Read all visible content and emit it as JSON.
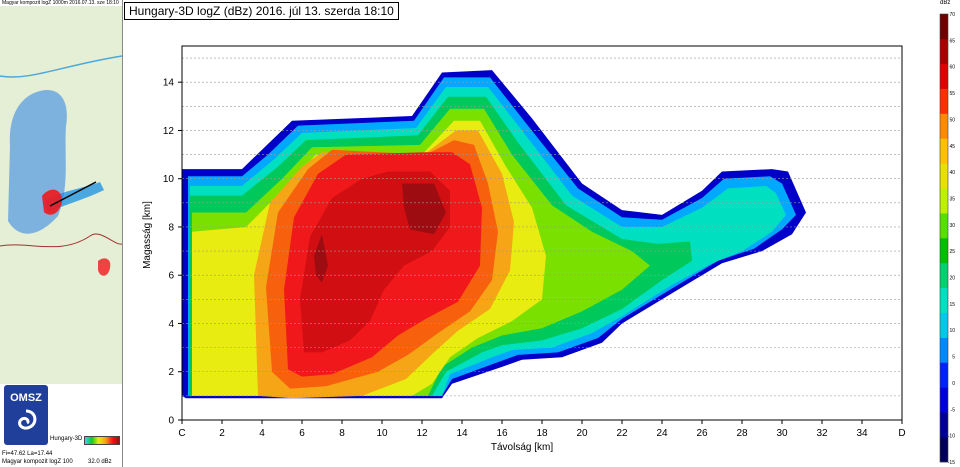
{
  "chart_title": "Hungary-3D logZ (dBz) 2016. júl 13. szerda 18:10",
  "minimap": {
    "title": "Magyar kompozit logZ 1000m 2016.07.13. sze 18:10",
    "logo_text": "OMSZ",
    "legend_caption": "Hungary-3D",
    "coords": "Fi=47.62 La=17.44",
    "composite_label": "Magyar kompozit logZ 100",
    "composite_value": "32.0 dBz"
  },
  "colors": {
    "map_bg": "#e4efd6",
    "lake": "#4aa7e0",
    "logo_bg": "#1f3f9a"
  },
  "colorbar": {
    "unit": "dBz",
    "ticks": [
      -15,
      -10,
      -5,
      0,
      5,
      10,
      15,
      20,
      25,
      30,
      35,
      40,
      45,
      50,
      55,
      60,
      65,
      70
    ],
    "colors": [
      "#00005a",
      "#000099",
      "#0000dd",
      "#0022ff",
      "#0088ff",
      "#00c8e8",
      "#00e0c0",
      "#00d070",
      "#00c000",
      "#55e000",
      "#bff000",
      "#e8e000",
      "#ffc000",
      "#ff8a00",
      "#ff3000",
      "#e00000",
      "#aa0000",
      "#700000"
    ]
  },
  "chart_data": {
    "type": "heatmap",
    "title": "Hungary-3D logZ (dBz) 2016. júl 13. szerda 18:10",
    "xlabel": "Távolság [km]",
    "ylabel": "Magasság [km]",
    "xlim": [
      0,
      36
    ],
    "ylim": [
      0,
      15.5
    ],
    "x_ticks": [
      0,
      2,
      4,
      6,
      8,
      10,
      12,
      14,
      16,
      18,
      20,
      22,
      24,
      26,
      28,
      30,
      32,
      34,
      36
    ],
    "x_tick_labels": [
      "C",
      "2",
      "4",
      "6",
      "8",
      "10",
      "12",
      "14",
      "16",
      "18",
      "20",
      "22",
      "24",
      "26",
      "28",
      "30",
      "32",
      "34",
      "D"
    ],
    "y_ticks": [
      0,
      2,
      4,
      6,
      8,
      10,
      12,
      14
    ],
    "y_tick_labels": [
      "0",
      "2",
      "4",
      "6",
      "8",
      "10",
      "12",
      "14"
    ],
    "gridlines_y": [
      1,
      2,
      3,
      4,
      5,
      6,
      7,
      8,
      9,
      10,
      11,
      12,
      13,
      14,
      15
    ],
    "grid": "horizontal dashed",
    "levels": [
      {
        "dbz": 5,
        "color": "#0000c8",
        "poly": [
          [
            0.2,
            0.9
          ],
          [
            0,
            1
          ],
          [
            0,
            10.4
          ],
          [
            3,
            10.4
          ],
          [
            4,
            11.2
          ],
          [
            5.5,
            12.4
          ],
          [
            11.5,
            12.6
          ],
          [
            13,
            14.4
          ],
          [
            15.5,
            14.5
          ],
          [
            17.5,
            12.5
          ],
          [
            20,
            9.8
          ],
          [
            22,
            8.7
          ],
          [
            24,
            8.5
          ],
          [
            26,
            9.5
          ],
          [
            27,
            10.3
          ],
          [
            29.5,
            10.4
          ],
          [
            30.3,
            10.3
          ],
          [
            31.2,
            8.6
          ],
          [
            30.5,
            7.7
          ],
          [
            29,
            7
          ],
          [
            27,
            6.5
          ],
          [
            25,
            5.5
          ],
          [
            22,
            4
          ],
          [
            21,
            3.2
          ],
          [
            19,
            2.6
          ],
          [
            17,
            2.5
          ],
          [
            16,
            2.2
          ],
          [
            13.5,
            1.5
          ],
          [
            13,
            0.9
          ]
        ]
      },
      {
        "dbz": 10,
        "color": "#00a8ff",
        "poly": [
          [
            0.3,
            1
          ],
          [
            0.3,
            10.1
          ],
          [
            3,
            10.1
          ],
          [
            4.3,
            11
          ],
          [
            5.8,
            12.2
          ],
          [
            11.6,
            12.4
          ],
          [
            13.1,
            14.2
          ],
          [
            15.4,
            14.2
          ],
          [
            17.2,
            12.3
          ],
          [
            19.8,
            9.6
          ],
          [
            22,
            8.4
          ],
          [
            24,
            8.3
          ],
          [
            26,
            9.2
          ],
          [
            27.1,
            10
          ],
          [
            29.4,
            10.1
          ],
          [
            30,
            9.8
          ],
          [
            30.7,
            8.5
          ],
          [
            30,
            7.9
          ],
          [
            28.6,
            7.1
          ],
          [
            26.8,
            6.6
          ],
          [
            24.8,
            5.6
          ],
          [
            22,
            4.2
          ],
          [
            20.8,
            3.4
          ],
          [
            18.8,
            2.8
          ],
          [
            16.8,
            2.7
          ],
          [
            15.8,
            2.4
          ],
          [
            13.5,
            1.7
          ],
          [
            13,
            1
          ]
        ]
      },
      {
        "dbz": 15,
        "color": "#00e0c0",
        "poly": [
          [
            0.4,
            1
          ],
          [
            0.4,
            9.7
          ],
          [
            3,
            9.7
          ],
          [
            4.6,
            10.8
          ],
          [
            6,
            11.9
          ],
          [
            11.7,
            12.1
          ],
          [
            13.2,
            13.8
          ],
          [
            15.3,
            13.8
          ],
          [
            17,
            12
          ],
          [
            19.5,
            9.3
          ],
          [
            22,
            8
          ],
          [
            24,
            8
          ],
          [
            26,
            8.8
          ],
          [
            27.3,
            9.6
          ],
          [
            29.2,
            9.7
          ],
          [
            29.7,
            9.4
          ],
          [
            30.2,
            8.5
          ],
          [
            29.5,
            7.8
          ],
          [
            28,
            7
          ],
          [
            26.5,
            6.5
          ],
          [
            24.5,
            5.6
          ],
          [
            22,
            4.3
          ],
          [
            20.5,
            3.6
          ],
          [
            18.5,
            3
          ],
          [
            16.5,
            2.9
          ],
          [
            15.5,
            2.6
          ],
          [
            13.4,
            1.9
          ],
          [
            13,
            1
          ]
        ]
      },
      {
        "dbz": 20,
        "color": "#00c85a",
        "poly": [
          [
            0.4,
            1
          ],
          [
            0.4,
            9.3
          ],
          [
            3,
            9.3
          ],
          [
            4.8,
            10.5
          ],
          [
            6.2,
            11.6
          ],
          [
            11.8,
            11.8
          ],
          [
            13.3,
            13.4
          ],
          [
            15.2,
            13.4
          ],
          [
            16.8,
            11.5
          ],
          [
            19.2,
            8.9
          ],
          [
            22,
            7.5
          ],
          [
            23.8,
            7.3
          ],
          [
            25.4,
            7.4
          ],
          [
            25.5,
            6.6
          ],
          [
            24,
            5.8
          ],
          [
            22,
            4.6
          ],
          [
            20,
            3.8
          ],
          [
            18,
            3.3
          ],
          [
            16,
            3.1
          ],
          [
            15,
            2.8
          ],
          [
            13.2,
            2
          ],
          [
            12.5,
            1
          ]
        ]
      },
      {
        "dbz": 25,
        "color": "#7ae000",
        "poly": [
          [
            0.5,
            1
          ],
          [
            0.5,
            8.6
          ],
          [
            3.2,
            8.6
          ],
          [
            5,
            10
          ],
          [
            6.5,
            11.3
          ],
          [
            11.9,
            11.4
          ],
          [
            13.4,
            12.9
          ],
          [
            15.1,
            12.9
          ],
          [
            16.5,
            11
          ],
          [
            18.5,
            8.9
          ],
          [
            20.5,
            7.8
          ],
          [
            22.5,
            7
          ],
          [
            23.4,
            6.4
          ],
          [
            22,
            5.4
          ],
          [
            20,
            4.5
          ],
          [
            18,
            3.8
          ],
          [
            16,
            3.5
          ],
          [
            14.5,
            3
          ],
          [
            13,
            2.2
          ],
          [
            12.3,
            1
          ]
        ]
      },
      {
        "dbz": 30,
        "color": "#e8ec10",
        "poly": [
          [
            0.5,
            1
          ],
          [
            0.5,
            7.8
          ],
          [
            3.2,
            8
          ],
          [
            5,
            9.5
          ],
          [
            6.7,
            11
          ],
          [
            12,
            11
          ],
          [
            13.6,
            12.4
          ],
          [
            14.9,
            12.4
          ],
          [
            16.2,
            10.5
          ],
          [
            17.5,
            8.8
          ],
          [
            18.2,
            6.8
          ],
          [
            18,
            5
          ],
          [
            16.5,
            4.1
          ],
          [
            14.8,
            3.4
          ],
          [
            13.4,
            2.6
          ],
          [
            12.5,
            1.5
          ],
          [
            11.5,
            1
          ]
        ]
      },
      {
        "dbz": 35,
        "color": "#f5a515",
        "poly": [
          [
            3.8,
            1
          ],
          [
            3.6,
            6
          ],
          [
            4.4,
            9
          ],
          [
            6,
            10.5
          ],
          [
            7,
            11.1
          ],
          [
            12.1,
            11
          ],
          [
            13.7,
            12
          ],
          [
            14.8,
            12
          ],
          [
            16,
            10.2
          ],
          [
            16.6,
            8.2
          ],
          [
            16.4,
            6.2
          ],
          [
            15.4,
            4.6
          ],
          [
            13.8,
            3.7
          ],
          [
            12.6,
            2.8
          ],
          [
            11.2,
            1.7
          ],
          [
            9,
            1
          ],
          [
            5.5,
            0.9
          ]
        ]
      },
      {
        "dbz": 40,
        "color": "#f7610e",
        "poly": [
          [
            4.5,
            2
          ],
          [
            4.2,
            5.5
          ],
          [
            4.8,
            8.6
          ],
          [
            6.3,
            10.4
          ],
          [
            7.5,
            11.2
          ],
          [
            12.2,
            11
          ],
          [
            13.6,
            11.6
          ],
          [
            14.6,
            11.4
          ],
          [
            15.3,
            9.8
          ],
          [
            15.8,
            7.8
          ],
          [
            15.5,
            5.8
          ],
          [
            14.4,
            4.5
          ],
          [
            12.8,
            3.6
          ],
          [
            11.3,
            2.7
          ],
          [
            9.8,
            2
          ],
          [
            7.2,
            1.4
          ],
          [
            5.4,
            1.3
          ]
        ]
      },
      {
        "dbz": 45,
        "color": "#f1181c",
        "poly": [
          [
            5.3,
            2.1
          ],
          [
            5.1,
            5.4
          ],
          [
            5.6,
            8.4
          ],
          [
            6.8,
            10.2
          ],
          [
            8.2,
            11
          ],
          [
            12.2,
            11.1
          ],
          [
            13.5,
            11.1
          ],
          [
            14.4,
            10.6
          ],
          [
            15,
            8.8
          ],
          [
            14.9,
            6.4
          ],
          [
            13.8,
            4.9
          ],
          [
            12.2,
            4.2
          ],
          [
            10.8,
            3.5
          ],
          [
            9.5,
            2.6
          ],
          [
            7.5,
            1.9
          ],
          [
            6,
            1.8
          ]
        ]
      },
      {
        "dbz": 50,
        "color": "#d10f12",
        "poly": [
          [
            6.1,
            2.8
          ],
          [
            5.9,
            5
          ],
          [
            6.4,
            7.6
          ],
          [
            7.5,
            9.2
          ],
          [
            9,
            10
          ],
          [
            10.3,
            10.3
          ],
          [
            12.4,
            10.3
          ],
          [
            13.4,
            9.5
          ],
          [
            13.4,
            8
          ],
          [
            12.5,
            7
          ],
          [
            11.1,
            6.4
          ],
          [
            10.1,
            5.4
          ],
          [
            9.4,
            4.1
          ],
          [
            8.4,
            3.3
          ],
          [
            7,
            2.8
          ]
        ]
      },
      {
        "dbz": 55,
        "color": "#9d0c10",
        "poly": [
          [
            11,
            9.8
          ],
          [
            12.6,
            9.8
          ],
          [
            13.2,
            8.6
          ],
          [
            12.6,
            7.7
          ],
          [
            11.4,
            7.9
          ],
          [
            11.1,
            8.8
          ]
        ]
      },
      {
        "dbz": 55,
        "color": "#9d0c10",
        "poly": [
          [
            6.6,
            6.8
          ],
          [
            7,
            7.7
          ],
          [
            7.3,
            6.4
          ],
          [
            7,
            5.7
          ],
          [
            6.7,
            6
          ]
        ]
      }
    ]
  }
}
